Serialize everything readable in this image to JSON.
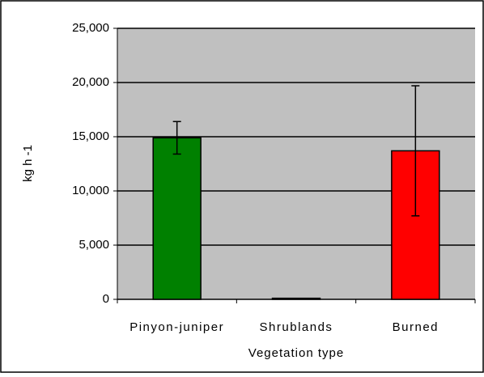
{
  "chart_data": {
    "type": "bar",
    "categories": [
      "Pinyon-juniper",
      "Shrublands",
      "Burned"
    ],
    "values": [
      14900,
      100,
      13700
    ],
    "errors": [
      1500,
      0,
      6000
    ],
    "colors": [
      "#008000",
      "#808080",
      "#ff0000"
    ],
    "y_label": "kg h -1",
    "x_label": "Vegetation type",
    "ylim": [
      0,
      25000
    ],
    "yticks": [
      {
        "value": 0,
        "label": "0"
      },
      {
        "value": 5000,
        "label": "5,000"
      },
      {
        "value": 10000,
        "label": "10,000"
      },
      {
        "value": 15000,
        "label": "15,000"
      },
      {
        "value": 20000,
        "label": "20,000"
      },
      {
        "value": 25000,
        "label": "25,000"
      }
    ],
    "grid": true
  }
}
